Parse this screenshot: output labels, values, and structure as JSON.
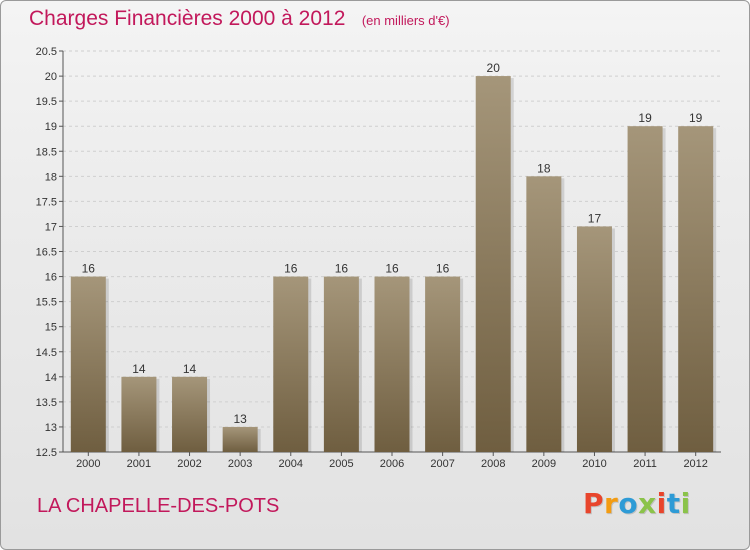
{
  "header": {
    "title": "Charges Financières 2000 à 2012",
    "unit": "(en milliers d'€)"
  },
  "footer": {
    "commune": "LA CHAPELLE-DES-POTS",
    "brand_logo_text": "Proxiti",
    "brand_logo_colors": [
      "#e8452c",
      "#f39c12",
      "#2e9bd6",
      "#8bc34a",
      "#e8452c",
      "#2e9bd6",
      "#8bc34a"
    ]
  },
  "colors": {
    "title": "#c2185b",
    "bar_top": "#a5967a",
    "bar_bottom": "#6f5e40",
    "grid": "#cfcfcf"
  },
  "chart_data": {
    "type": "bar",
    "title": "Charges Financières 2000 à 2012",
    "subtitle": "(en milliers d'€)",
    "categories": [
      "2000",
      "2001",
      "2002",
      "2003",
      "2004",
      "2005",
      "2006",
      "2007",
      "2008",
      "2009",
      "2010",
      "2011",
      "2012"
    ],
    "values": [
      16,
      14,
      14,
      13,
      16,
      16,
      16,
      16,
      20,
      18,
      17,
      19,
      19
    ],
    "ylim": [
      12.5,
      20.5
    ],
    "yticks": [
      "12.5",
      "13",
      "13.5",
      "14",
      "14.5",
      "15",
      "15.5",
      "16",
      "16.5",
      "17",
      "17.5",
      "18",
      "18.5",
      "19",
      "19.5",
      "20",
      "20.5"
    ],
    "grid": true,
    "data_labels": true
  }
}
